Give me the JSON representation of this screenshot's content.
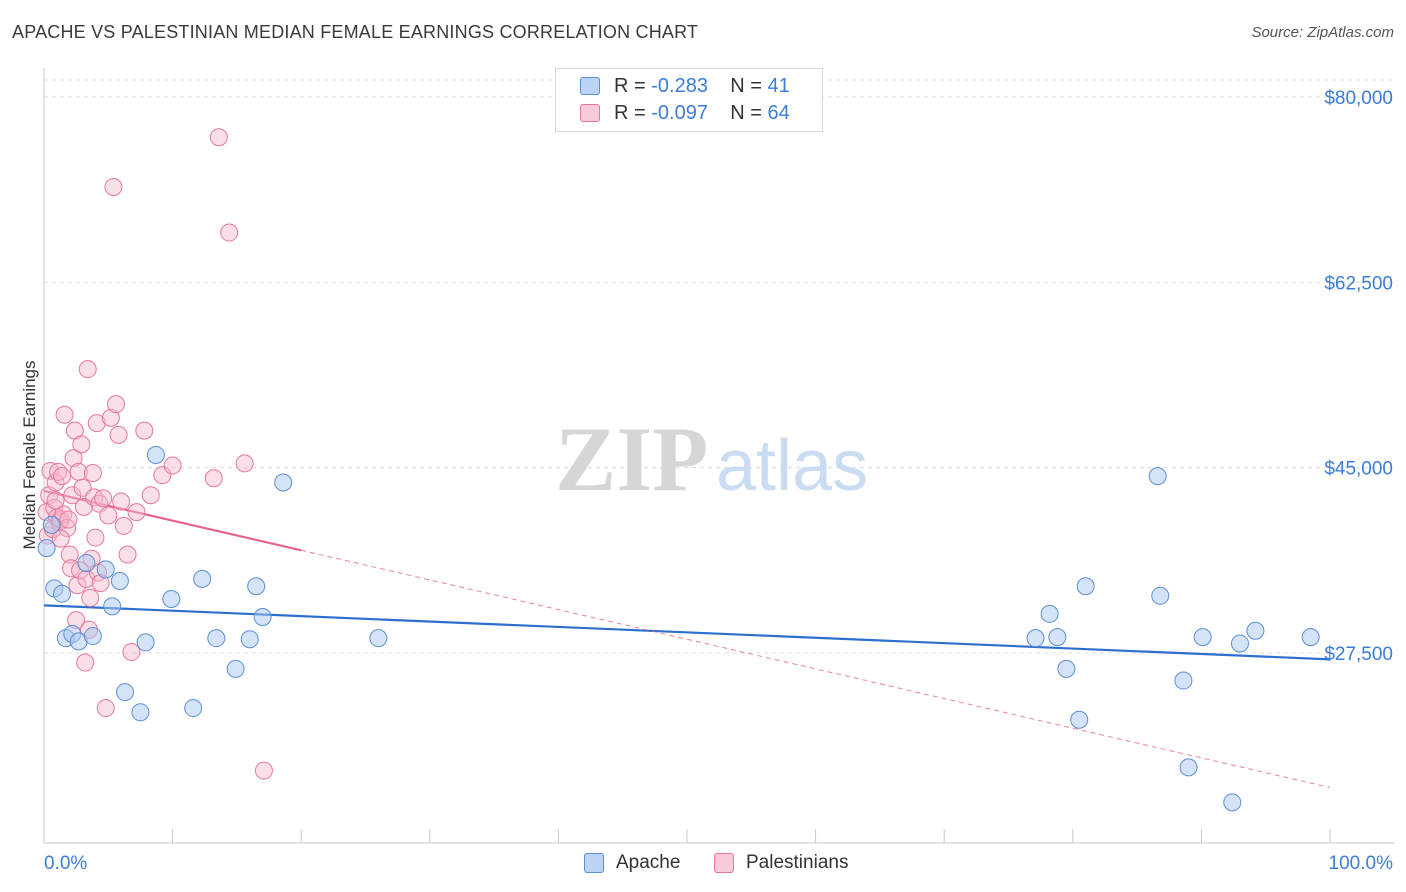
{
  "header": {
    "title": "APACHE VS PALESTINIAN MEDIAN FEMALE EARNINGS CORRELATION CHART",
    "source": "Source: ZipAtlas.com"
  },
  "legend": {
    "rows": [
      {
        "r_label": "R =",
        "r_value": "-0.283",
        "n_label": "N =",
        "n_value": "41"
      },
      {
        "r_label": "R =",
        "r_value": "-0.097",
        "n_label": "N =",
        "n_value": "64"
      }
    ]
  },
  "bottom_legend": [
    "Apache",
    "Palestinians"
  ],
  "colors": {
    "apache_fill": "#a9c8ef",
    "apache_stroke": "#5b8fd6",
    "apache_line": "#2c6fcf",
    "pal_fill": "#f6b8ca",
    "pal_stroke": "#e7789a",
    "pal_line": "#e5648d",
    "tick_label": "#3b7dd8",
    "grid": "#dcdcdc"
  },
  "chart_data": {
    "type": "scatter",
    "title": "APACHE VS PALESTINIAN MEDIAN FEMALE EARNINGS CORRELATION CHART",
    "xlabel": "",
    "ylabel": "Median Female Earnings",
    "xlim": [
      0,
      100
    ],
    "ylim": [
      11000,
      82000
    ],
    "x_tick_labels": [
      "0.0%",
      "100.0%"
    ],
    "y_ticks": [
      27500,
      45000,
      62500,
      80000
    ],
    "y_tick_labels": [
      "$27,500",
      "$45,000",
      "$62,500",
      "$80,000"
    ],
    "watermark": "ZIPatlas",
    "series": [
      {
        "name": "Apache",
        "R": -0.283,
        "N": 41,
        "trend": {
          "x": [
            0,
            100
          ],
          "y": [
            32000,
            26900
          ],
          "dashed_extension": false
        },
        "points": [
          [
            0.2,
            37400
          ],
          [
            0.8,
            33600
          ],
          [
            1.4,
            33100
          ],
          [
            1.7,
            28900
          ],
          [
            2.2,
            29300
          ],
          [
            2.7,
            28600
          ],
          [
            3.3,
            36000
          ],
          [
            3.8,
            29100
          ],
          [
            4.8,
            35400
          ],
          [
            5.3,
            31900
          ],
          [
            5.9,
            34300
          ],
          [
            6.3,
            23800
          ],
          [
            7.5,
            21900
          ],
          [
            7.9,
            28500
          ],
          [
            8.7,
            46200
          ],
          [
            9.9,
            32600
          ],
          [
            11.6,
            22300
          ],
          [
            12.3,
            34500
          ],
          [
            13.4,
            28900
          ],
          [
            14.9,
            26000
          ],
          [
            16.0,
            28800
          ],
          [
            16.5,
            33800
          ],
          [
            17.0,
            30900
          ],
          [
            18.6,
            43600
          ],
          [
            26.0,
            28900
          ],
          [
            77.1,
            28900
          ],
          [
            78.2,
            31200
          ],
          [
            78.8,
            29000
          ],
          [
            79.5,
            26000
          ],
          [
            80.5,
            21200
          ],
          [
            81.0,
            33800
          ],
          [
            86.6,
            44200
          ],
          [
            86.8,
            32900
          ],
          [
            88.6,
            24900
          ],
          [
            89.0,
            16700
          ],
          [
            90.1,
            29000
          ],
          [
            92.4,
            13400
          ],
          [
            93.0,
            28400
          ],
          [
            94.2,
            29600
          ],
          [
            98.5,
            29000
          ],
          [
            0.6,
            39600
          ]
        ]
      },
      {
        "name": "Palestinians",
        "R": -0.097,
        "N": 64,
        "trend": {
          "x": [
            0,
            100
          ],
          "y": [
            42800,
            14800
          ],
          "solid_until_x": 20,
          "dashed_extension": true
        },
        "points": [
          [
            0.2,
            40800
          ],
          [
            0.3,
            38600
          ],
          [
            0.4,
            42400
          ],
          [
            0.5,
            44700
          ],
          [
            0.7,
            39200
          ],
          [
            0.8,
            41200
          ],
          [
            0.9,
            43600
          ],
          [
            1.0,
            40300
          ],
          [
            1.1,
            44600
          ],
          [
            1.2,
            39900
          ],
          [
            1.3,
            40100
          ],
          [
            1.4,
            44200
          ],
          [
            1.5,
            40600
          ],
          [
            1.6,
            50000
          ],
          [
            1.8,
            39300
          ],
          [
            1.9,
            40100
          ],
          [
            2.0,
            36800
          ],
          [
            2.1,
            35500
          ],
          [
            2.2,
            42400
          ],
          [
            2.3,
            45900
          ],
          [
            2.4,
            48500
          ],
          [
            2.5,
            30600
          ],
          [
            2.6,
            33900
          ],
          [
            2.7,
            44600
          ],
          [
            2.8,
            35300
          ],
          [
            2.9,
            47200
          ],
          [
            3.0,
            43100
          ],
          [
            3.1,
            41300
          ],
          [
            3.2,
            26600
          ],
          [
            3.3,
            34500
          ],
          [
            3.4,
            54300
          ],
          [
            3.5,
            29700
          ],
          [
            3.6,
            32700
          ],
          [
            3.7,
            36400
          ],
          [
            3.8,
            44500
          ],
          [
            3.9,
            42200
          ],
          [
            4.0,
            38400
          ],
          [
            4.1,
            49200
          ],
          [
            4.2,
            35100
          ],
          [
            4.3,
            41600
          ],
          [
            4.4,
            34100
          ],
          [
            4.6,
            42100
          ],
          [
            4.8,
            22300
          ],
          [
            5.0,
            40500
          ],
          [
            5.2,
            49700
          ],
          [
            5.4,
            71500
          ],
          [
            5.6,
            51000
          ],
          [
            5.8,
            48100
          ],
          [
            6.0,
            41800
          ],
          [
            6.2,
            39500
          ],
          [
            6.5,
            36800
          ],
          [
            6.8,
            27600
          ],
          [
            7.2,
            40800
          ],
          [
            7.8,
            48500
          ],
          [
            8.3,
            42400
          ],
          [
            9.2,
            44300
          ],
          [
            10.0,
            45200
          ],
          [
            13.2,
            44000
          ],
          [
            13.6,
            76200
          ],
          [
            14.4,
            67200
          ],
          [
            15.6,
            45400
          ],
          [
            17.1,
            16400
          ],
          [
            1.3,
            38300
          ],
          [
            0.9,
            41900
          ]
        ]
      }
    ]
  }
}
